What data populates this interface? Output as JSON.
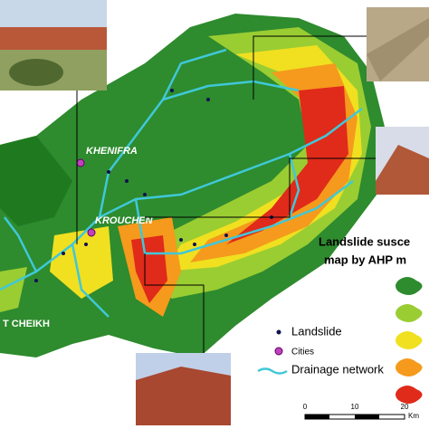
{
  "title": [
    "Landslide susce",
    "map  by AHP m"
  ],
  "cities": [
    "KHENIFRA",
    "KROUCHEN",
    "T CHEIKH"
  ],
  "legend": {
    "landslide": "Landslide",
    "cities": "Cities",
    "drainage": "Drainage network"
  },
  "scale": {
    "ticks": [
      "0",
      "10",
      "20"
    ],
    "unit": "Km"
  }
}
